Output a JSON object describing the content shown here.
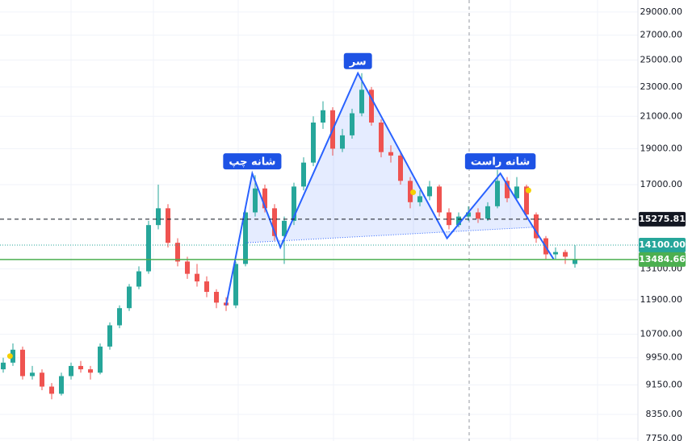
{
  "chart_data": {
    "type": "candlestick",
    "log_scale": true,
    "grid": true,
    "ylim": [
      7690,
      30100
    ],
    "yticks": [
      {
        "value": 29000,
        "label": "29000.00"
      },
      {
        "value": 27000,
        "label": "27000.00"
      },
      {
        "value": 25000,
        "label": "25000.00"
      },
      {
        "value": 23000,
        "label": "23000.00"
      },
      {
        "value": 21000,
        "label": "21000.00"
      },
      {
        "value": 19000,
        "label": "19000.00"
      },
      {
        "value": 17000,
        "label": "17000.00"
      },
      {
        "value": 13100,
        "label": "13100.00"
      },
      {
        "value": 11900,
        "label": "11900.00"
      },
      {
        "value": 10700,
        "label": "10700.00"
      },
      {
        "value": 9950,
        "label": "9950.00"
      },
      {
        "value": 9150,
        "label": "9150.00"
      },
      {
        "value": 8350,
        "label": "8350.00"
      },
      {
        "value": 7750,
        "label": "7750.00"
      }
    ],
    "up_color": "#26a69a",
    "down_color": "#ef5350",
    "candles": [
      [
        9600,
        9950,
        9500,
        9800
      ],
      [
        9800,
        10400,
        9700,
        10200
      ],
      [
        10200,
        10300,
        9300,
        9400
      ],
      [
        9400,
        9700,
        9300,
        9500
      ],
      [
        9500,
        9600,
        9000,
        9100
      ],
      [
        9100,
        9200,
        8750,
        8900
      ],
      [
        8900,
        9500,
        8850,
        9400
      ],
      [
        9400,
        9800,
        9300,
        9700
      ],
      [
        9700,
        9850,
        9500,
        9600
      ],
      [
        9600,
        9700,
        9300,
        9500
      ],
      [
        9500,
        10400,
        9450,
        10300
      ],
      [
        10300,
        11100,
        10200,
        11000
      ],
      [
        11000,
        11700,
        10900,
        11600
      ],
      [
        11600,
        12500,
        11500,
        12400
      ],
      [
        12400,
        13200,
        12300,
        13000
      ],
      [
        13000,
        15200,
        12900,
        15000
      ],
      [
        15000,
        17000,
        14800,
        15800
      ],
      [
        15800,
        16000,
        14000,
        14200
      ],
      [
        14200,
        14400,
        13200,
        13400
      ],
      [
        13400,
        13600,
        12700,
        12900
      ],
      [
        12900,
        13300,
        12400,
        12600
      ],
      [
        12600,
        12800,
        12000,
        12200
      ],
      [
        12200,
        12300,
        11600,
        11800
      ],
      [
        11800,
        12000,
        11500,
        11700
      ],
      [
        11700,
        13400,
        11600,
        13300
      ],
      [
        13300,
        15800,
        13200,
        15600
      ],
      [
        15600,
        17500,
        15400,
        16800
      ],
      [
        16800,
        17000,
        15600,
        15800
      ],
      [
        15800,
        16000,
        14300,
        14500
      ],
      [
        14500,
        15400,
        13300,
        15200
      ],
      [
        15200,
        17100,
        15000,
        16900
      ],
      [
        16900,
        18500,
        16700,
        18200
      ],
      [
        18200,
        21000,
        18000,
        20600
      ],
      [
        20600,
        22000,
        20200,
        21400
      ],
      [
        21400,
        21600,
        18600,
        19000
      ],
      [
        19000,
        20200,
        18800,
        19800
      ],
      [
        19800,
        21500,
        19600,
        21200
      ],
      [
        21200,
        24000,
        21000,
        22800
      ],
      [
        22800,
        23000,
        20400,
        20600
      ],
      [
        20600,
        20800,
        18500,
        18800
      ],
      [
        18800,
        19200,
        18200,
        18600
      ],
      [
        18600,
        18800,
        17000,
        17200
      ],
      [
        17200,
        17400,
        15800,
        16100
      ],
      [
        16100,
        16700,
        15900,
        16400
      ],
      [
        16400,
        17200,
        16200,
        16900
      ],
      [
        16900,
        17000,
        15400,
        15600
      ],
      [
        15600,
        15800,
        14800,
        15000
      ],
      [
        15000,
        15600,
        14900,
        15400
      ],
      [
        15400,
        15900,
        15200,
        15600
      ],
      [
        15600,
        15800,
        15100,
        15300
      ],
      [
        15300,
        16100,
        15200,
        15900
      ],
      [
        15900,
        17800,
        15800,
        17200
      ],
      [
        17200,
        17400,
        16100,
        16300
      ],
      [
        16300,
        17400,
        16200,
        16900
      ],
      [
        16900,
        17000,
        15300,
        15500
      ],
      [
        15500,
        15600,
        14200,
        14400
      ],
      [
        14400,
        14500,
        13500,
        13700
      ],
      [
        13700,
        14000,
        13500,
        13800
      ],
      [
        13800,
        13900,
        13300,
        13600
      ],
      [
        13300,
        14100,
        13150,
        13484.66
      ]
    ],
    "pattern": {
      "color": "#2962ff",
      "x": [
        23,
        25.7,
        28.6,
        36.6,
        45.8,
        51.3,
        54.7,
        56.8
      ],
      "y": [
        11700,
        17600,
        14000,
        24000,
        14400,
        17600,
        14900,
        13500
      ]
    },
    "neckline": {
      "x": [
        25,
        54.7
      ],
      "y": [
        14200,
        14900
      ]
    },
    "annotations": [
      "شانه چپ",
      "سر",
      "شانه راست"
    ],
    "markers": {
      "color": "#f5d000",
      "x": [
        0.7,
        42.3,
        54.2
      ],
      "y": [
        10000,
        16600,
        16700
      ]
    },
    "price_lines": [
      {
        "value": 15275.81,
        "label": "15275.81",
        "color": "#131722",
        "style": "dashed"
      },
      {
        "value": 14100,
        "label": "14100.00",
        "color": "#26a69a",
        "style": "dotted"
      },
      {
        "value": 13484.66,
        "label": "13484.66",
        "color": "#4caf50",
        "style": "solid"
      }
    ]
  }
}
